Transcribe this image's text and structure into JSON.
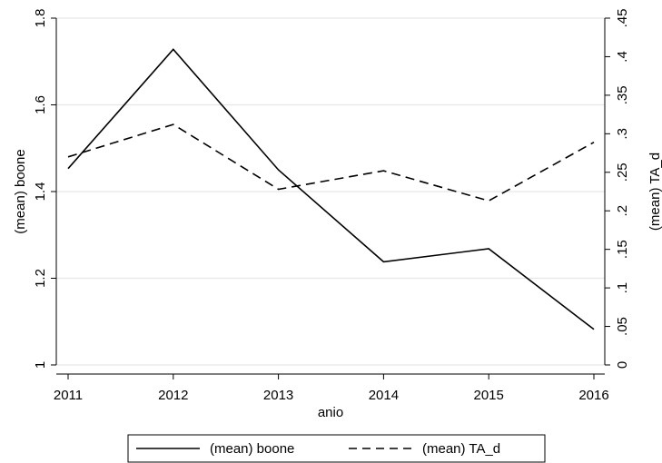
{
  "chart_data": {
    "type": "line",
    "title": "",
    "xlabel": "anio",
    "x": [
      2011,
      2012,
      2013,
      2014,
      2015,
      2016
    ],
    "x_ticks": [
      "2011",
      "2012",
      "2013",
      "2014",
      "2015",
      "2016"
    ],
    "y_left": {
      "label": "(mean) boone",
      "range": [
        1,
        1.8
      ],
      "ticks": [
        1,
        1.2,
        1.4,
        1.6,
        1.8
      ],
      "tick_labels": [
        "1",
        "1.2",
        "1.4",
        "1.6",
        "1.8"
      ]
    },
    "y_right": {
      "label": "(mean) TA_d",
      "range": [
        0,
        0.45
      ],
      "ticks": [
        0,
        0.05,
        0.1,
        0.15,
        0.2,
        0.25,
        0.3,
        0.35,
        0.4,
        0.45
      ],
      "tick_labels": [
        "0",
        ".05",
        ".1",
        ".15",
        ".2",
        ".25",
        ".3",
        ".35",
        ".4",
        ".45"
      ]
    },
    "series": [
      {
        "name": "(mean) boone",
        "axis": "left",
        "style": "solid",
        "color": "#000000",
        "values": [
          1.453,
          1.728,
          1.45,
          1.238,
          1.268,
          1.082
        ]
      },
      {
        "name": "(mean) TA_d",
        "axis": "right",
        "style": "dashed",
        "color": "#000000",
        "values": [
          0.27,
          0.312,
          0.228,
          0.252,
          0.213,
          0.289
        ]
      }
    ],
    "grid": true,
    "grid_color": "#e6e6e6",
    "legend": {
      "position": "bottom"
    }
  }
}
